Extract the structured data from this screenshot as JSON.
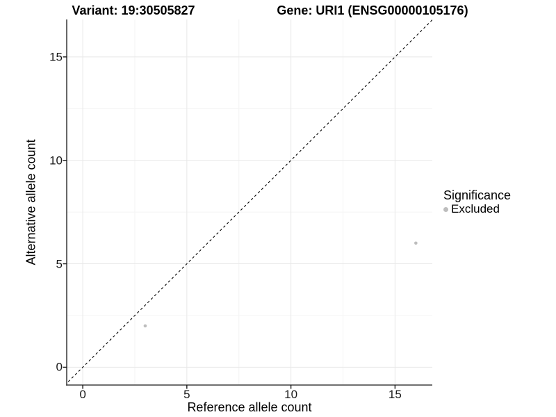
{
  "header": {
    "variant_title": "Variant: 19:30505827",
    "gene_title": "Gene: URI1 (ENSG00000105176)"
  },
  "legend": {
    "title": "Significance",
    "items": [
      {
        "label": "Excluded",
        "color": "#bdbdbd"
      }
    ]
  },
  "colors": {
    "point": "#bdbdbd",
    "major_grid": "#e8e8e8",
    "minor_grid": "#f4f4f4",
    "axis_line": "#404040",
    "tick_mark": "#1a1a1a",
    "reference_line": "#000000",
    "background": "#ffffff"
  },
  "chart_data": {
    "type": "scatter",
    "title": "Variant: 19:30505827 — Gene: URI1 (ENSG00000105176)",
    "xlabel": "Reference allele count",
    "ylabel": "Alternative allele count",
    "xlim": [
      -0.77,
      16.79
    ],
    "ylim": [
      -0.86,
      16.81
    ],
    "xticks": [
      0,
      5,
      10,
      15
    ],
    "yticks": [
      0,
      5,
      10,
      15
    ],
    "minor_xticks": [
      2.5,
      7.5,
      12.5
    ],
    "minor_yticks": [
      2.5,
      7.5,
      12.5
    ],
    "grid": true,
    "legend_position": "right",
    "series": [
      {
        "name": "Excluded",
        "color": "#bdbdbd",
        "points": [
          {
            "x": 3,
            "y": 2
          },
          {
            "x": 16,
            "y": 6
          }
        ]
      }
    ],
    "reference_line": {
      "kind": "abline",
      "intercept": 0,
      "slope": 1,
      "style": "dashed"
    }
  }
}
